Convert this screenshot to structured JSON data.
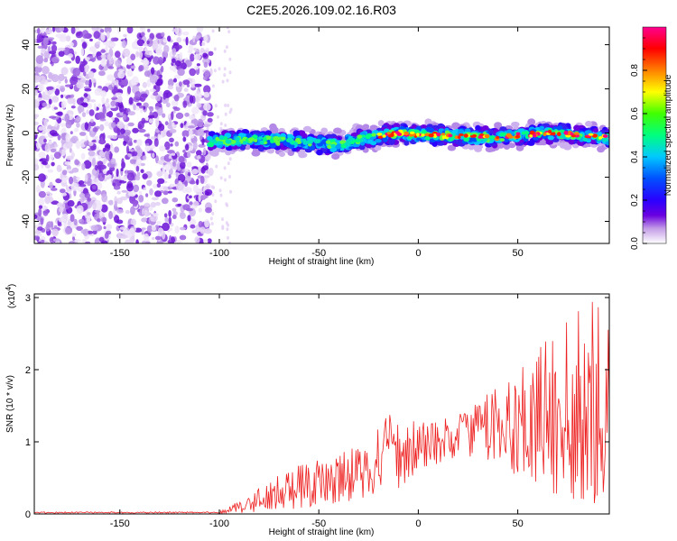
{
  "title": "C2E5.2026.109.02.16.R03",
  "chart_data": [
    {
      "type": "heatmap",
      "xlabel": "Height of straight line (km)",
      "ylabel": "Frequency (Hz)",
      "xlim": [
        -193,
        96
      ],
      "ylim": [
        -50,
        48
      ],
      "x_ticks": [
        -150,
        -100,
        -50,
        0,
        50
      ],
      "y_ticks": [
        40,
        20,
        0,
        -20,
        -40
      ],
      "y_tick_labels": [
        "40",
        "20",
        "0",
        "-20",
        "-40"
      ],
      "noise_region_x": [
        -193,
        -104
      ],
      "signal_track": [
        {
          "x": -105,
          "freq": -4
        },
        {
          "x": -80,
          "freq": -3
        },
        {
          "x": -60,
          "freq": -4
        },
        {
          "x": -40,
          "freq": -5
        },
        {
          "x": -25,
          "freq": -2
        },
        {
          "x": -10,
          "freq": 0
        },
        {
          "x": 10,
          "freq": -1
        },
        {
          "x": 40,
          "freq": -2
        },
        {
          "x": 65,
          "freq": 0
        },
        {
          "x": 95,
          "freq": -2
        }
      ],
      "colorbar": {
        "label": "Normalized spectral amplitude",
        "range": [
          0,
          1
        ],
        "ticks": [
          "0.0",
          "0.2",
          "0.4",
          "0.6",
          "0.8"
        ],
        "colors": [
          "#ffffff",
          "#c29be6",
          "#6a00e0",
          "#2a00ff",
          "#0050ff",
          "#00c8ff",
          "#00ff80",
          "#40ff00",
          "#ffff00",
          "#ff8000",
          "#ff0000",
          "#ff0090"
        ]
      }
    },
    {
      "type": "line",
      "xlabel": "Height of straight line (km)",
      "ylabel": "SNR (10 * v/v)",
      "multiplier_label": "(x10",
      "multiplier_exponent": "4",
      "xlim": [
        -193,
        96
      ],
      "ylim": [
        0,
        3.05
      ],
      "x_ticks": [
        -150,
        -100,
        -50,
        0,
        50
      ],
      "y_ticks": [
        0,
        1,
        2,
        3
      ],
      "line_color": "#ee2222",
      "envelope": [
        {
          "x": -193,
          "low": 0.0,
          "high": 0.03
        },
        {
          "x": -100,
          "low": 0.0,
          "high": 0.04
        },
        {
          "x": -85,
          "low": 0.02,
          "high": 0.25
        },
        {
          "x": -70,
          "low": 0.05,
          "high": 0.55
        },
        {
          "x": -50,
          "low": 0.1,
          "high": 0.8
        },
        {
          "x": -30,
          "low": 0.2,
          "high": 0.95
        },
        {
          "x": -12,
          "low": 0.3,
          "high": 1.45
        },
        {
          "x": 0,
          "low": 0.6,
          "high": 1.25
        },
        {
          "x": 20,
          "low": 0.8,
          "high": 1.4
        },
        {
          "x": 40,
          "low": 0.7,
          "high": 1.8
        },
        {
          "x": 60,
          "low": 0.3,
          "high": 2.3
        },
        {
          "x": 80,
          "low": 0.2,
          "high": 2.8
        },
        {
          "x": 90,
          "low": 0.1,
          "high": 3.05
        },
        {
          "x": 96,
          "low": 0.3,
          "high": 2.6
        }
      ]
    }
  ]
}
